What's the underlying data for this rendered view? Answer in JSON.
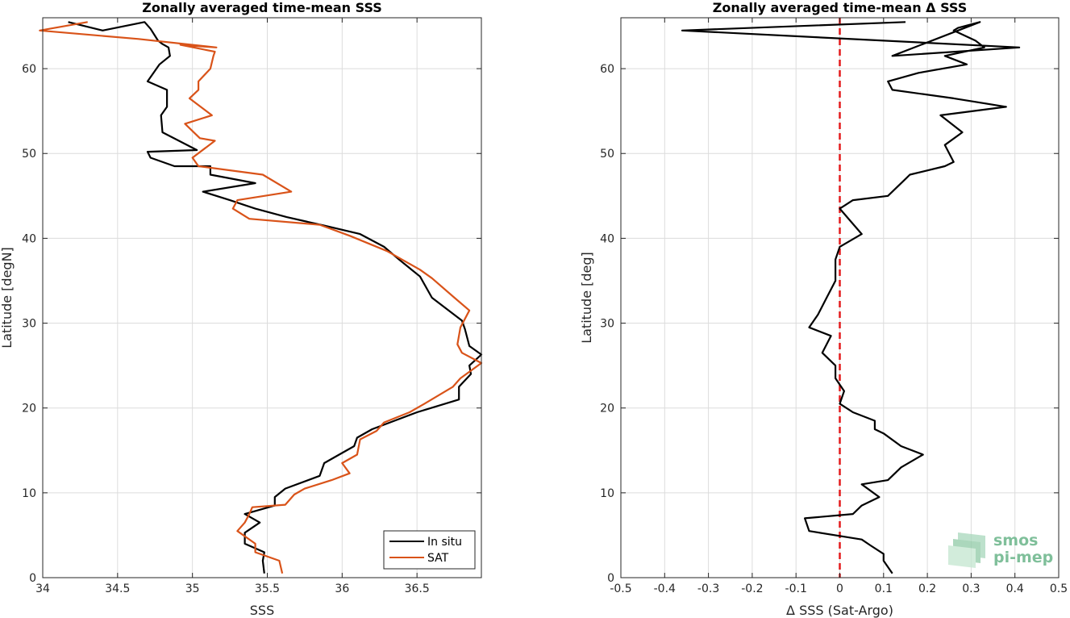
{
  "chart_data": [
    {
      "type": "line",
      "title": "Zonally averaged time-mean SSS",
      "xlabel": "SSS",
      "ylabel": "Latitude [degN]",
      "xlim": [
        34,
        36.93
      ],
      "ylim": [
        0,
        66
      ],
      "xticks": [
        "34",
        "34.5",
        "35",
        "35.5",
        "36",
        "36.5"
      ],
      "xtick_values": [
        34,
        34.5,
        35,
        35.5,
        36,
        36.5
      ],
      "yticks": [
        "0",
        "10",
        "20",
        "30",
        "40",
        "50",
        "60"
      ],
      "ytick_values": [
        0,
        10,
        20,
        30,
        40,
        50,
        60
      ],
      "grid": true,
      "legend_position": "bottom-right",
      "series": [
        {
          "name": "In situ",
          "color": "#000000",
          "x": [
            35.48,
            35.47,
            35.48,
            35.35,
            35.35,
            35.45,
            35.35,
            35.55,
            35.55,
            35.62,
            35.85,
            35.88,
            35.98,
            36.08,
            36.1,
            36.2,
            36.35,
            36.5,
            36.78,
            36.78,
            36.86,
            36.85,
            36.93,
            36.85,
            36.82,
            36.8,
            36.6,
            36.52,
            36.38,
            36.28,
            36.12,
            35.88,
            35.63,
            35.42,
            35.25,
            35.07,
            35.42,
            35.12,
            35.12,
            34.88,
            34.72,
            34.7,
            35.03,
            34.8,
            34.79,
            34.83,
            34.83,
            34.7,
            34.78,
            34.85,
            34.84,
            34.8,
            34.77,
            34.72,
            34.68,
            34.4,
            34.17
          ],
          "y": [
            0.5,
            2,
            3,
            4,
            5.3,
            6.5,
            7.5,
            8.5,
            9.5,
            10.5,
            12,
            13.5,
            14.5,
            15.5,
            16.5,
            17.5,
            18.5,
            19.5,
            21,
            22.5,
            24,
            25,
            26.3,
            27.3,
            29.3,
            30.3,
            33,
            35.5,
            37.5,
            39,
            40.5,
            41.5,
            42.5,
            43.5,
            44.5,
            45.5,
            46.5,
            47.5,
            48.5,
            48.5,
            49.5,
            50.2,
            50.4,
            52.5,
            54.5,
            55.5,
            57.5,
            58.5,
            60.5,
            61.5,
            62.5,
            62.9,
            63.3,
            64.7,
            65.5,
            64.5,
            65.5
          ]
        },
        {
          "name": "SAT",
          "color": "#d95319",
          "x": [
            35.6,
            35.58,
            35.42,
            35.42,
            35.3,
            35.35,
            35.38,
            35.4,
            35.62,
            35.68,
            35.75,
            35.93,
            36.05,
            36.0,
            36.1,
            36.12,
            36.23,
            36.28,
            36.45,
            36.55,
            36.74,
            36.79,
            36.93,
            36.8,
            36.77,
            36.79,
            36.85,
            36.75,
            36.6,
            36.52,
            36.3,
            36.05,
            35.85,
            35.38,
            35.27,
            35.3,
            35.66,
            35.47,
            35.04,
            35.0,
            35.15,
            35.05,
            34.95,
            35.13,
            34.98,
            35.04,
            35.04,
            35.12,
            35.14,
            35.15,
            34.92,
            35.16,
            34.64,
            33.98,
            34.3
          ],
          "y": [
            0.5,
            2,
            3,
            4,
            5.5,
            6.5,
            7.5,
            8.3,
            8.6,
            9.8,
            10.5,
            11.5,
            12.3,
            13.5,
            14.5,
            16.3,
            17.3,
            18.3,
            19.5,
            20.5,
            22.5,
            23.5,
            25.3,
            26.5,
            27.5,
            29.5,
            31.5,
            33,
            35.3,
            36.3,
            38.5,
            40.3,
            41.6,
            42.3,
            43.5,
            44.5,
            45.5,
            47.5,
            48.5,
            49.5,
            51.5,
            51.8,
            53.5,
            54.5,
            56.5,
            57.5,
            58.5,
            60,
            61.5,
            62,
            62.8,
            62.5,
            63.5,
            64.5,
            65.5
          ]
        }
      ]
    },
    {
      "type": "line",
      "title": "Zonally averaged time-mean Δ SSS",
      "xlabel": "Δ SSS (Sat-Argo)",
      "ylabel": "Latitude [deg]",
      "xlim": [
        -0.5,
        0.5
      ],
      "ylim": [
        0,
        66
      ],
      "xticks": [
        "-0.5",
        "-0.4",
        "-0.3",
        "-0.2",
        "-0.1",
        "0",
        "0.1",
        "0.2",
        "0.3",
        "0.4",
        "0.5"
      ],
      "xtick_values": [
        -0.5,
        -0.4,
        -0.3,
        -0.2,
        -0.1,
        0,
        0.1,
        0.2,
        0.3,
        0.4,
        0.5
      ],
      "yticks": [
        "0",
        "10",
        "20",
        "30",
        "40",
        "50",
        "60"
      ],
      "ytick_values": [
        0,
        10,
        20,
        30,
        40,
        50,
        60
      ],
      "grid": true,
      "reference_line": {
        "x": 0,
        "color": "#e41a1c",
        "style": "dashed"
      },
      "series": [
        {
          "color": "#000000",
          "x": [
            0.12,
            0.1,
            0.1,
            0.07,
            0.05,
            -0.07,
            -0.08,
            0.03,
            0.05,
            0.09,
            0.05,
            0.11,
            0.14,
            0.19,
            0.14,
            0.1,
            0.08,
            0.08,
            0.03,
            0.0,
            0.01,
            -0.01,
            -0.01,
            -0.04,
            -0.02,
            -0.07,
            -0.05,
            -0.03,
            -0.01,
            -0.01,
            -0.01,
            -0.01,
            0.0,
            0.05,
            0.0,
            0.03,
            0.11,
            0.15,
            0.16,
            0.24,
            0.26,
            0.24,
            0.28,
            0.23,
            0.38,
            0.26,
            0.12,
            0.11,
            0.18,
            0.29,
            0.24,
            0.33,
            0.31,
            0.26,
            0.27,
            0.32,
            0.12,
            0.41,
            -0.36,
            0.15
          ],
          "y": [
            0.5,
            2,
            2.8,
            3.8,
            4.5,
            5.5,
            7,
            7.5,
            8.5,
            9.5,
            11,
            11.5,
            13,
            14.5,
            15.5,
            17,
            17.5,
            18.5,
            19.5,
            20.5,
            22,
            23.5,
            25,
            26.5,
            28.5,
            29.5,
            31,
            33,
            35,
            36,
            37,
            37.5,
            39,
            40.5,
            43.5,
            44.5,
            45,
            47,
            47.5,
            48.5,
            49,
            51,
            52.5,
            54.5,
            55.5,
            56.5,
            57.5,
            58.5,
            59.5,
            60.5,
            61.5,
            62.5,
            63.3,
            64.5,
            64.8,
            65.5,
            61.5,
            62.5,
            64.5,
            65.5
          ]
        }
      ]
    }
  ],
  "logo": {
    "line1": "smos",
    "line2": "pi-mep",
    "color": "#7fbf9a"
  }
}
